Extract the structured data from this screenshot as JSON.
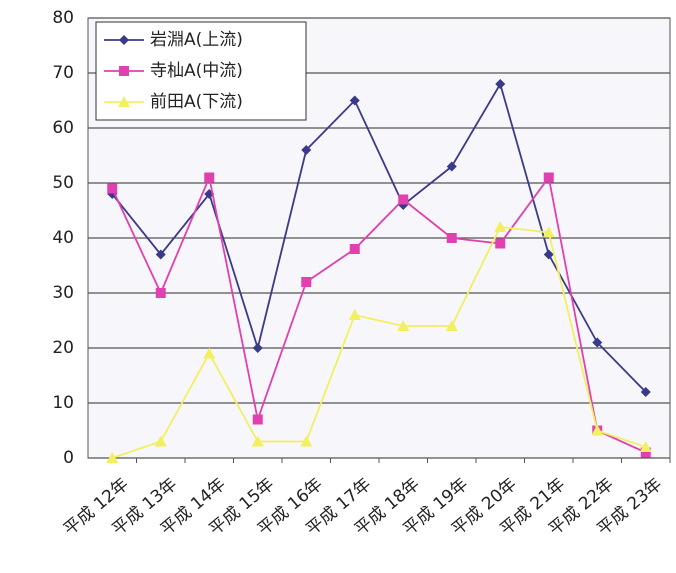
{
  "chart_data": {
    "type": "line",
    "categories": [
      "平成 12年",
      "平成 13年",
      "平成 14年",
      "平成 15年",
      "平成 16年",
      "平成 17年",
      "平成 18年",
      "平成 19年",
      "平成 20年",
      "平成 21年",
      "平成 22年",
      "平成 23年"
    ],
    "series": [
      {
        "name": "岩淵A(上流)",
        "color": "#3a3a8a",
        "marker": "diamond",
        "values": [
          48,
          37,
          48,
          20,
          56,
          65,
          46,
          53,
          68,
          37,
          21,
          12
        ]
      },
      {
        "name": "寺杣A(中流)",
        "color": "#e040b0",
        "marker": "square",
        "values": [
          49,
          30,
          51,
          7,
          32,
          38,
          47,
          40,
          39,
          51,
          5,
          1
        ]
      },
      {
        "name": "前田A(下流)",
        "color": "#f2f060",
        "marker": "triangle",
        "values": [
          0,
          3,
          19,
          3,
          3,
          26,
          24,
          24,
          42,
          41,
          5,
          2
        ]
      }
    ],
    "ylim": [
      0,
      80
    ],
    "yticks": [
      0,
      10,
      20,
      30,
      40,
      50,
      60,
      70,
      80
    ],
    "grid": true,
    "legend": "top-left"
  }
}
